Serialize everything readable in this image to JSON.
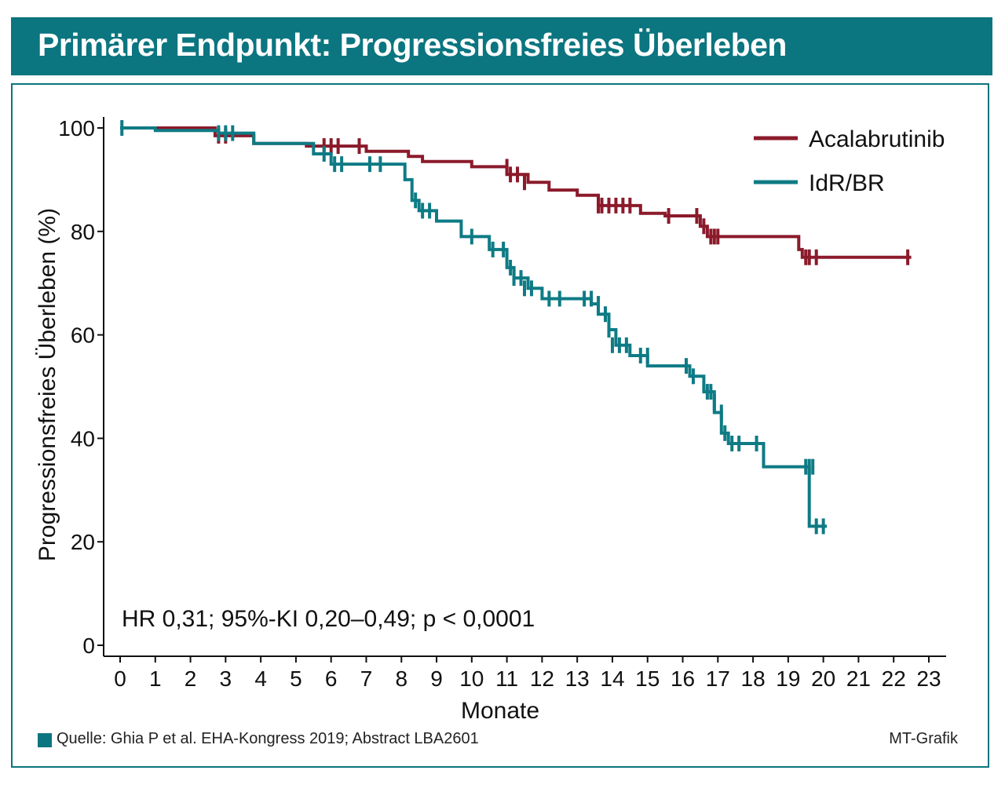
{
  "header": {
    "title": "Primärer Endpunkt: Progressionsfreies Überleben"
  },
  "annotation": "HR 0,31; 95%-KI 0,20–0,49; p < 0,0001",
  "footer": {
    "source": "Quelle: Ghia P et al. EHA-Kongress 2019; Abstract LBA2601",
    "credit": "MT-Grafik"
  },
  "colors": {
    "brand": "#0b7580",
    "acalabrutinib": "#8b1a2b",
    "idr_br": "#0e7b85"
  },
  "chart_data": {
    "type": "line",
    "title": "",
    "xlabel": "Monate",
    "ylabel": "Progressionsfreies Überleben (%)",
    "xlim": [
      0,
      23
    ],
    "ylim": [
      0,
      100
    ],
    "xticks": [
      0,
      1,
      2,
      3,
      4,
      5,
      6,
      7,
      8,
      9,
      10,
      11,
      12,
      13,
      14,
      15,
      16,
      17,
      18,
      19,
      20,
      21,
      22,
      23
    ],
    "yticks": [
      0,
      20,
      40,
      60,
      80,
      100
    ],
    "legend_position": "top-right",
    "step": true,
    "series": [
      {
        "name": "Acalabrutinib",
        "color": "#8b1a2b",
        "points": [
          [
            0,
            100
          ],
          [
            2.7,
            100
          ],
          [
            2.7,
            98.5
          ],
          [
            3.8,
            98.5
          ],
          [
            3.8,
            97
          ],
          [
            5.3,
            97
          ],
          [
            5.3,
            96.5
          ],
          [
            7,
            96.5
          ],
          [
            7,
            95.5
          ],
          [
            8.2,
            95.5
          ],
          [
            8.2,
            94.5
          ],
          [
            8.6,
            94.5
          ],
          [
            8.6,
            93.5
          ],
          [
            10,
            93.5
          ],
          [
            10,
            92.5
          ],
          [
            11,
            92.5
          ],
          [
            11,
            91
          ],
          [
            11.6,
            91
          ],
          [
            11.6,
            89.5
          ],
          [
            12.2,
            89.5
          ],
          [
            12.2,
            88
          ],
          [
            13,
            88
          ],
          [
            13,
            87
          ],
          [
            13.6,
            87
          ],
          [
            13.6,
            85
          ],
          [
            14.8,
            85
          ],
          [
            14.8,
            83.5
          ],
          [
            15.5,
            83.5
          ],
          [
            15.5,
            83
          ],
          [
            16.5,
            83
          ],
          [
            16.5,
            81
          ],
          [
            16.7,
            81
          ],
          [
            16.7,
            79
          ],
          [
            19.3,
            79
          ],
          [
            19.3,
            76.5
          ],
          [
            19.4,
            76.5
          ],
          [
            19.4,
            75
          ],
          [
            22.5,
            75
          ]
        ],
        "censored": [
          [
            2.8,
            98.5
          ],
          [
            3,
            98.5
          ],
          [
            5.8,
            96.5
          ],
          [
            6,
            96.5
          ],
          [
            6.2,
            96.5
          ],
          [
            6.8,
            96.5
          ],
          [
            11,
            92.5
          ],
          [
            11.1,
            91
          ],
          [
            11.3,
            91
          ],
          [
            11.5,
            89.5
          ],
          [
            13.6,
            85
          ],
          [
            13.7,
            85
          ],
          [
            13.9,
            85
          ],
          [
            14.1,
            85
          ],
          [
            14.3,
            85
          ],
          [
            14.5,
            85
          ],
          [
            15.6,
            83
          ],
          [
            16.4,
            83
          ],
          [
            16.6,
            81
          ],
          [
            16.8,
            79
          ],
          [
            16.9,
            79
          ],
          [
            17,
            79
          ],
          [
            19.5,
            75
          ],
          [
            19.6,
            75
          ],
          [
            19.8,
            75
          ],
          [
            22.4,
            75
          ]
        ]
      },
      {
        "name": "IdR/BR",
        "color": "#0e7b85",
        "points": [
          [
            0,
            100
          ],
          [
            1,
            100
          ],
          [
            1,
            99.5
          ],
          [
            2.8,
            99.5
          ],
          [
            2.8,
            99
          ],
          [
            3.8,
            99
          ],
          [
            3.8,
            97
          ],
          [
            5.5,
            97
          ],
          [
            5.5,
            95
          ],
          [
            6,
            95
          ],
          [
            6,
            93
          ],
          [
            8.1,
            93
          ],
          [
            8.1,
            90
          ],
          [
            8.3,
            90
          ],
          [
            8.3,
            86
          ],
          [
            8.5,
            86
          ],
          [
            8.5,
            84
          ],
          [
            9,
            84
          ],
          [
            9,
            82
          ],
          [
            9.7,
            82
          ],
          [
            9.7,
            79
          ],
          [
            10.5,
            79
          ],
          [
            10.5,
            76.5
          ],
          [
            11,
            76.5
          ],
          [
            11,
            73
          ],
          [
            11.2,
            73
          ],
          [
            11.2,
            71
          ],
          [
            11.6,
            71
          ],
          [
            11.6,
            69
          ],
          [
            12,
            69
          ],
          [
            12,
            67
          ],
          [
            13.4,
            67
          ],
          [
            13.4,
            66
          ],
          [
            13.6,
            66
          ],
          [
            13.6,
            64
          ],
          [
            13.9,
            64
          ],
          [
            13.9,
            61
          ],
          [
            14.1,
            61
          ],
          [
            14.1,
            58
          ],
          [
            14.5,
            58
          ],
          [
            14.5,
            56
          ],
          [
            15,
            56
          ],
          [
            15,
            54
          ],
          [
            16.2,
            54
          ],
          [
            16.2,
            52
          ],
          [
            16.6,
            52
          ],
          [
            16.6,
            49
          ],
          [
            16.9,
            49
          ],
          [
            16.9,
            45
          ],
          [
            17.1,
            45
          ],
          [
            17.1,
            41
          ],
          [
            17.3,
            41
          ],
          [
            17.3,
            39
          ],
          [
            18.3,
            39
          ],
          [
            18.3,
            34.5
          ],
          [
            19.6,
            34.5
          ],
          [
            19.6,
            23
          ],
          [
            20.1,
            23
          ]
        ],
        "censored": [
          [
            0.05,
            100
          ],
          [
            2.8,
            99
          ],
          [
            3,
            99
          ],
          [
            3.2,
            99
          ],
          [
            5.8,
            95
          ],
          [
            6.1,
            93
          ],
          [
            6.3,
            93
          ],
          [
            7.1,
            93
          ],
          [
            7.4,
            93
          ],
          [
            8.4,
            86
          ],
          [
            8.6,
            84
          ],
          [
            8.8,
            84
          ],
          [
            10,
            79
          ],
          [
            10.6,
            76.5
          ],
          [
            10.9,
            76.5
          ],
          [
            11.1,
            73
          ],
          [
            11.2,
            71
          ],
          [
            11.4,
            71
          ],
          [
            11.5,
            69
          ],
          [
            11.7,
            69
          ],
          [
            12.2,
            67
          ],
          [
            12.5,
            67
          ],
          [
            13.2,
            67
          ],
          [
            13.4,
            67
          ],
          [
            13.6,
            66
          ],
          [
            13.8,
            64
          ],
          [
            13.9,
            61
          ],
          [
            14,
            58
          ],
          [
            14.2,
            58
          ],
          [
            14.4,
            58
          ],
          [
            14.8,
            56
          ],
          [
            15,
            56
          ],
          [
            16.1,
            54
          ],
          [
            16.3,
            52
          ],
          [
            16.7,
            49
          ],
          [
            16.8,
            49
          ],
          [
            16.9,
            47
          ],
          [
            17.1,
            45
          ],
          [
            17.2,
            41
          ],
          [
            17.4,
            39
          ],
          [
            17.6,
            39
          ],
          [
            18.1,
            39
          ],
          [
            19.5,
            34.5
          ],
          [
            19.6,
            34.5
          ],
          [
            19.7,
            34.5
          ],
          [
            19.8,
            23
          ],
          [
            20,
            23
          ]
        ]
      }
    ]
  }
}
